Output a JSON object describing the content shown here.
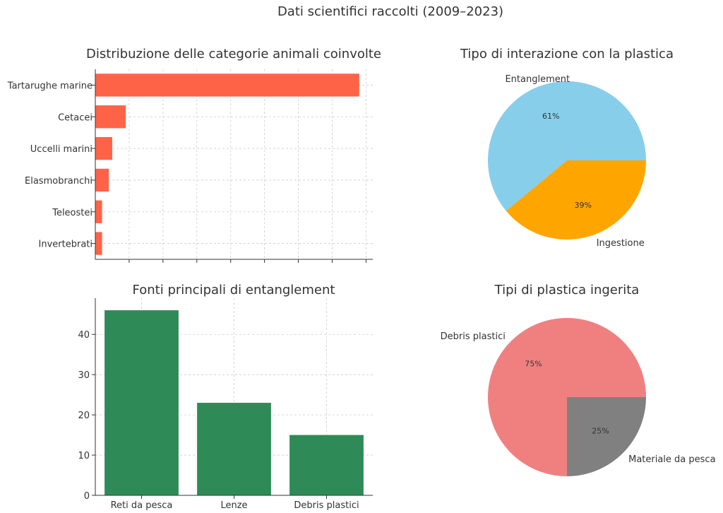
{
  "suptitle": "Dati scientifici raccolti (2009–2023)",
  "colors": {
    "hbar": "#ff6347",
    "vbar": "#2e8b57",
    "pie1": [
      "#87ceeb",
      "#ffa500"
    ],
    "pie2": [
      "#f08080",
      "#808080"
    ]
  },
  "chart_data": [
    {
      "type": "bar",
      "orientation": "horizontal",
      "title": "Distribuzione delle categorie animali coinvolte",
      "categories": [
        "Tartarughe marine",
        "Cetacei",
        "Uccelli marini",
        "Elasmobranchi",
        "Teleostei",
        "Invertebrati"
      ],
      "values": [
        78,
        9,
        5,
        4,
        2,
        2
      ],
      "xlim": [
        0,
        82
      ],
      "xticks": [
        10,
        20,
        30,
        40,
        50,
        60,
        70,
        80
      ],
      "xticks_labeled": false,
      "grid": true
    },
    {
      "type": "pie",
      "title": "Tipo di interazione con la plastica",
      "labels": [
        "Entanglement",
        "Ingestione"
      ],
      "values": [
        61,
        39
      ],
      "pct_labels": [
        "61%",
        "39%"
      ]
    },
    {
      "type": "bar",
      "title": "Fonti principali di entanglement",
      "categories": [
        "Reti da pesca",
        "Lenze",
        "Debris plastici"
      ],
      "values": [
        46,
        23,
        15
      ],
      "ylim": [
        0,
        49
      ],
      "yticks": [
        0,
        10,
        20,
        30,
        40
      ],
      "grid": true
    },
    {
      "type": "pie",
      "title": "Tipi di plastica ingerita",
      "labels": [
        "Debris plastici",
        "Materiale da pesca"
      ],
      "values": [
        75,
        25
      ],
      "pct_labels": [
        "75%",
        "25%"
      ]
    }
  ]
}
